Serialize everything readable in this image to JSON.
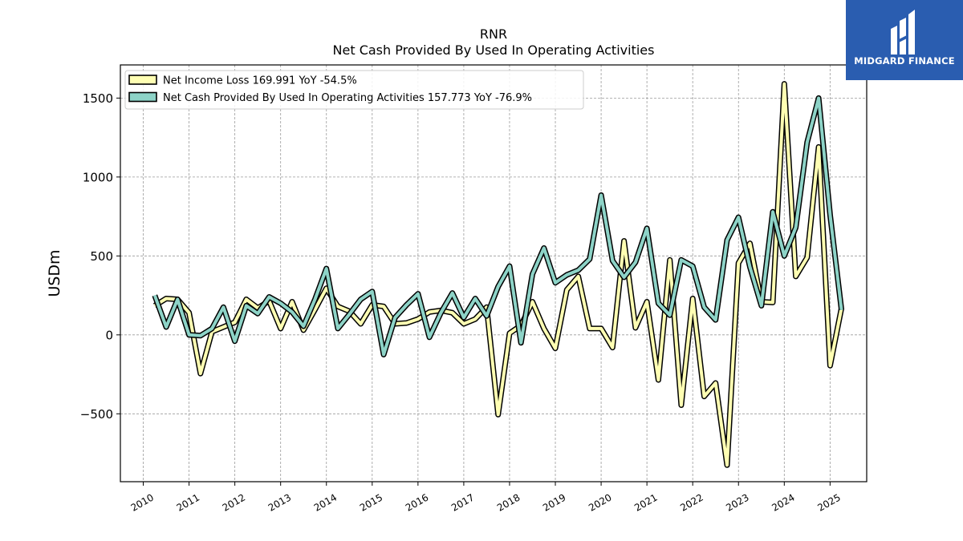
{
  "chart_data": {
    "type": "line",
    "title": "RNR",
    "subtitle": "Net Cash Provided By Used In Operating Activities",
    "xlabel": "",
    "ylabel": "USDm",
    "xlim": [
      2009.5,
      2025.8
    ],
    "ylim": [
      -930,
      1710
    ],
    "yticks": [
      -500,
      0,
      500,
      1000,
      1500
    ],
    "yticklabels": [
      "−500",
      "0",
      "500",
      "1000",
      "1500"
    ],
    "xticks": [
      2010,
      2011,
      2012,
      2013,
      2014,
      2015,
      2016,
      2017,
      2018,
      2019,
      2020,
      2021,
      2022,
      2023,
      2024,
      2025
    ],
    "xticklabels": [
      "2010",
      "2011",
      "2012",
      "2013",
      "2014",
      "2015",
      "2016",
      "2017",
      "2018",
      "2019",
      "2020",
      "2021",
      "2022",
      "2023",
      "2024",
      "2025"
    ],
    "grid": true,
    "legend_position": "top-left",
    "series": [
      {
        "name": "Net Income Loss",
        "legend_label": "Net Income Loss  169.991 YoY -54.5%",
        "color": "#ffffb3",
        "x": [
          2010.25,
          2010.5,
          2010.75,
          2011.0,
          2011.25,
          2011.5,
          2011.75,
          2012.0,
          2012.25,
          2012.5,
          2012.75,
          2013.0,
          2013.25,
          2013.5,
          2013.75,
          2014.0,
          2014.25,
          2014.5,
          2014.75,
          2015.0,
          2015.25,
          2015.5,
          2015.75,
          2016.0,
          2016.25,
          2016.5,
          2016.75,
          2017.0,
          2017.25,
          2017.5,
          2017.75,
          2018.0,
          2018.25,
          2018.5,
          2018.75,
          2019.0,
          2019.25,
          2019.5,
          2019.75,
          2020.0,
          2020.25,
          2020.5,
          2020.75,
          2021.0,
          2021.25,
          2021.5,
          2021.75,
          2022.0,
          2022.25,
          2022.5,
          2022.75,
          2023.0,
          2023.25,
          2023.5,
          2023.75,
          2024.0,
          2024.25,
          2024.5,
          2024.75,
          2025.0,
          2025.25
        ],
        "y": [
          185,
          230,
          225,
          140,
          -245,
          20,
          50,
          80,
          225,
          170,
          215,
          40,
          210,
          30,
          160,
          295,
          180,
          150,
          70,
          190,
          180,
          70,
          75,
          100,
          145,
          155,
          140,
          70,
          100,
          175,
          -505,
          10,
          60,
          210,
          40,
          -85,
          285,
          370,
          40,
          40,
          -80,
          595,
          45,
          210,
          -285,
          475,
          -445,
          230,
          -390,
          -305,
          -825,
          455,
          580,
          210,
          205,
          1590,
          370,
          490,
          1190,
          -195,
          170
        ]
      },
      {
        "name": "Net Cash Provided By Used In Operating Activities",
        "legend_label": "Net Cash Provided By Used In Operating Activities  157.773 YoY -76.9%",
        "color": "#8dd3c7",
        "x": [
          2010.25,
          2010.5,
          2010.75,
          2011.0,
          2011.25,
          2011.5,
          2011.75,
          2012.0,
          2012.25,
          2012.5,
          2012.75,
          2013.0,
          2013.25,
          2013.5,
          2013.75,
          2014.0,
          2014.25,
          2014.5,
          2014.75,
          2015.0,
          2015.25,
          2015.5,
          2015.75,
          2016.0,
          2016.25,
          2016.5,
          2016.75,
          2017.0,
          2017.25,
          2017.5,
          2017.75,
          2018.0,
          2018.25,
          2018.5,
          2018.75,
          2019.0,
          2019.25,
          2019.5,
          2019.75,
          2020.0,
          2020.25,
          2020.5,
          2020.75,
          2021.0,
          2021.25,
          2021.5,
          2021.75,
          2022.0,
          2022.25,
          2022.5,
          2022.75,
          2023.0,
          2023.25,
          2023.5,
          2023.75,
          2024.0,
          2024.25,
          2024.5,
          2024.75,
          2025.0,
          2025.25
        ],
        "y": [
          250,
          50,
          225,
          0,
          -5,
          40,
          175,
          -40,
          185,
          135,
          240,
          200,
          145,
          55,
          225,
          420,
          40,
          130,
          225,
          275,
          -125,
          110,
          190,
          260,
          -15,
          140,
          265,
          110,
          230,
          120,
          305,
          435,
          -50,
          385,
          550,
          330,
          380,
          410,
          480,
          885,
          470,
          365,
          460,
          675,
          200,
          125,
          475,
          435,
          175,
          95,
          600,
          745,
          430,
          185,
          780,
          500,
          680,
          1220,
          1500,
          760,
          158
        ]
      }
    ]
  },
  "logo": {
    "text": "MIDGARD FINANCE"
  }
}
